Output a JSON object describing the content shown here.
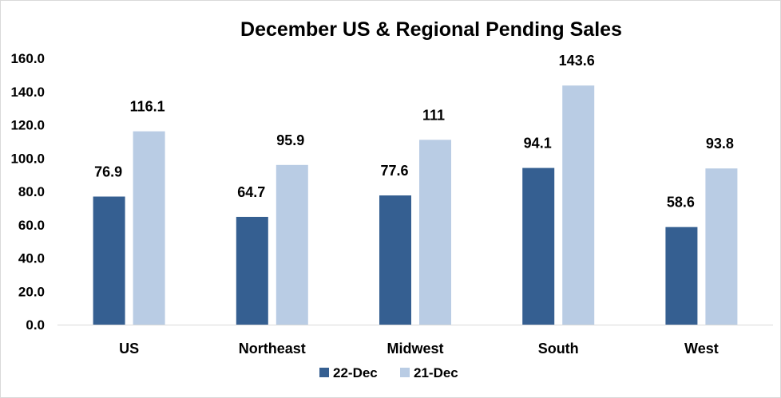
{
  "chart_data": {
    "type": "bar",
    "title": "December US & Regional Pending Sales",
    "categories": [
      "US",
      "Northeast",
      "Midwest",
      "South",
      "West"
    ],
    "series": [
      {
        "name": "22-Dec",
        "values": [
          76.9,
          64.7,
          77.6,
          94.1,
          58.6
        ],
        "color": "#355f91",
        "labels": [
          "76.9",
          "64.7",
          "77.6",
          "94.1",
          "58.6"
        ]
      },
      {
        "name": "21-Dec",
        "values": [
          116.1,
          95.9,
          111,
          143.6,
          93.8
        ],
        "color": "#b9cce4",
        "labels": [
          "116.1",
          "95.9",
          "111",
          "143.6",
          "93.8"
        ]
      }
    ],
    "yticks": [
      "0.0",
      "20.0",
      "40.0",
      "60.0",
      "80.0",
      "100.0",
      "120.0",
      "140.0",
      "160.0"
    ],
    "ylim": [
      0,
      160
    ],
    "grid": false,
    "legend_position": "bottom"
  }
}
